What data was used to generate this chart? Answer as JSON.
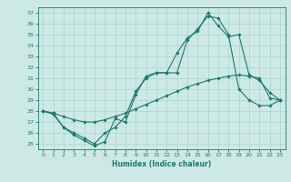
{
  "xlabel": "Humidex (Indice chaleur)",
  "xlim": [
    -0.5,
    23.5
  ],
  "ylim": [
    24.5,
    37.5
  ],
  "yticks": [
    25,
    26,
    27,
    28,
    29,
    30,
    31,
    32,
    33,
    34,
    35,
    36,
    37
  ],
  "xticks": [
    0,
    1,
    2,
    3,
    4,
    5,
    6,
    7,
    8,
    9,
    10,
    11,
    12,
    13,
    14,
    15,
    16,
    17,
    18,
    19,
    20,
    21,
    22,
    23
  ],
  "bg_color": "#cce9e5",
  "grid_color": "#aad4cf",
  "line_color": "#1a7a6e",
  "series": [
    {
      "x": [
        0,
        1,
        2,
        3,
        4,
        5,
        6,
        7,
        8,
        9,
        10,
        11,
        12,
        13,
        14,
        15,
        16,
        17,
        18,
        19,
        20,
        21,
        22,
        23
      ],
      "y": [
        28.0,
        27.7,
        26.5,
        25.8,
        25.3,
        24.8,
        25.2,
        27.3,
        27.0,
        29.5,
        31.2,
        31.5,
        31.5,
        33.3,
        34.7,
        35.3,
        37.0,
        35.8,
        34.8,
        35.0,
        31.3,
        30.8,
        29.7,
        29.0
      ]
    },
    {
      "x": [
        0,
        1,
        2,
        3,
        4,
        5,
        6,
        7,
        8,
        9,
        10,
        11,
        12,
        13,
        14,
        15,
        16,
        17,
        18,
        19,
        20,
        21,
        22,
        23
      ],
      "y": [
        28.0,
        27.8,
        27.5,
        27.2,
        27.0,
        27.0,
        27.2,
        27.5,
        27.8,
        28.2,
        28.6,
        29.0,
        29.4,
        29.8,
        30.2,
        30.5,
        30.8,
        31.0,
        31.2,
        31.3,
        31.2,
        31.0,
        29.2,
        29.0
      ]
    },
    {
      "x": [
        0,
        1,
        2,
        3,
        4,
        5,
        6,
        7,
        8,
        9,
        10,
        11,
        12,
        13,
        14,
        15,
        16,
        17,
        18,
        19,
        20,
        21,
        22,
        23
      ],
      "y": [
        28.0,
        27.8,
        26.5,
        26.0,
        25.5,
        25.0,
        26.0,
        26.5,
        27.5,
        29.8,
        31.0,
        31.5,
        31.5,
        31.5,
        34.5,
        35.5,
        36.7,
        36.5,
        35.0,
        30.0,
        29.0,
        28.5,
        28.5,
        29.0
      ]
    }
  ]
}
